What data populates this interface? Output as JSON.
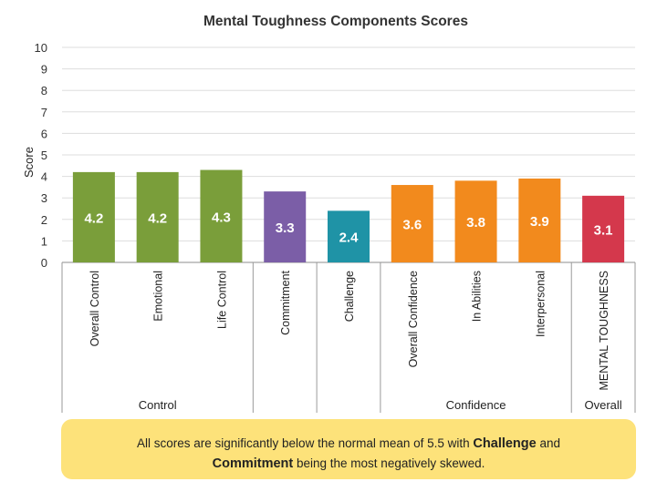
{
  "chart_data": {
    "type": "bar",
    "title": "Mental Toughness Components Scores",
    "ylabel": "Score",
    "ylim": [
      0,
      10
    ],
    "yticks": [
      0,
      1,
      2,
      3,
      4,
      5,
      6,
      7,
      8,
      9,
      10
    ],
    "grid": true,
    "categories": [
      "Overall Control",
      "Emotional",
      "Life Control",
      "Commitment",
      "Challenge",
      "Overall Confidence",
      "In Abilities",
      "Interpersonal",
      "MENTAL TOUGHNESS"
    ],
    "values": [
      4.2,
      4.2,
      4.3,
      3.3,
      2.4,
      3.6,
      3.8,
      3.9,
      3.1
    ],
    "value_labels": [
      "4.2",
      "4.2",
      "4.3",
      "3.3",
      "2.4",
      "3.6",
      "3.8",
      "3.9",
      "3.1"
    ],
    "bar_colors": [
      "#7a9e3a",
      "#7a9e3a",
      "#7a9e3a",
      "#7b5ea7",
      "#1f93a6",
      "#f28a1d",
      "#f28a1d",
      "#f28a1d",
      "#d4384c"
    ],
    "groups": [
      {
        "label": "Control",
        "start": 0,
        "end": 2
      },
      {
        "label": "",
        "start": 3,
        "end": 3
      },
      {
        "label": "",
        "start": 4,
        "end": 4
      },
      {
        "label": "Confidence",
        "start": 5,
        "end": 7
      },
      {
        "label": "Overall",
        "start": 8,
        "end": 8
      }
    ]
  },
  "note": {
    "part1": "All scores are significantly below the normal mean of 5.5 with ",
    "bold1": "Challenge",
    "part2": " and ",
    "bold2": "Commitment",
    "part3": " being the most negatively skewed."
  }
}
